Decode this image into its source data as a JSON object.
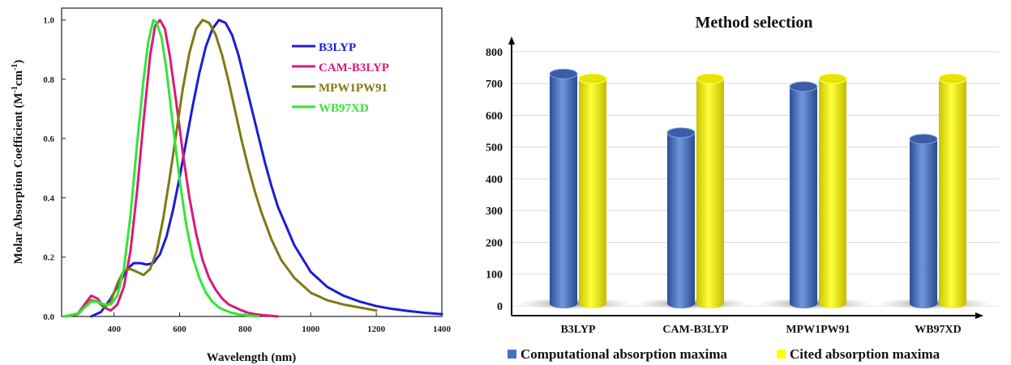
{
  "chart_data": [
    {
      "type": "line",
      "title": "",
      "xlabel": "Wavelength (nm)",
      "ylabel": "Molar Absorption Coefficient (M",
      "ylabel_sup1": "-1",
      "ylabel_mid": "cm",
      "ylabel_sup2": "-1",
      "ylabel_end": ")",
      "xlim": [
        240,
        1400
      ],
      "ylim": [
        0,
        1.04
      ],
      "xticks": [
        400,
        600,
        800,
        1000,
        1200,
        1400
      ],
      "xtick_labels": [
        "400",
        "600",
        "800",
        "1000",
        "1200",
        "1400"
      ],
      "yticks": [
        0.0,
        0.2,
        0.4,
        0.6,
        0.8,
        1.0
      ],
      "ytick_labels": [
        "0.0",
        "0.2",
        "0.4",
        "0.6",
        "0.8",
        "1.0"
      ],
      "legend_position": "top-right",
      "series": [
        {
          "name": "B3LYP",
          "color": "#1c1cd6",
          "x": [
            330,
            360,
            390,
            420,
            440,
            460,
            480,
            500,
            520,
            540,
            560,
            580,
            600,
            620,
            640,
            660,
            680,
            700,
            720,
            740,
            760,
            780,
            800,
            820,
            840,
            860,
            880,
            900,
            950,
            1000,
            1050,
            1100,
            1150,
            1200,
            1250,
            1300,
            1350,
            1400
          ],
          "y": [
            0.0,
            0.015,
            0.06,
            0.12,
            0.16,
            0.18,
            0.18,
            0.175,
            0.18,
            0.21,
            0.27,
            0.36,
            0.47,
            0.59,
            0.71,
            0.82,
            0.91,
            0.97,
            1.0,
            0.99,
            0.95,
            0.88,
            0.79,
            0.7,
            0.61,
            0.52,
            0.44,
            0.37,
            0.24,
            0.15,
            0.1,
            0.07,
            0.05,
            0.035,
            0.025,
            0.018,
            0.012,
            0.008
          ]
        },
        {
          "name": "CAM-B3LYP",
          "color": "#d81b7a",
          "x": [
            250,
            290,
            310,
            330,
            350,
            370,
            390,
            410,
            430,
            450,
            470,
            490,
            510,
            525,
            540,
            555,
            570,
            590,
            610,
            630,
            650,
            670,
            690,
            710,
            730,
            750,
            770,
            790,
            810,
            830,
            850,
            870,
            900
          ],
          "y": [
            0.0,
            0.01,
            0.04,
            0.07,
            0.06,
            0.03,
            0.02,
            0.04,
            0.1,
            0.22,
            0.42,
            0.66,
            0.88,
            0.98,
            1.0,
            0.97,
            0.88,
            0.72,
            0.55,
            0.4,
            0.28,
            0.19,
            0.13,
            0.09,
            0.06,
            0.04,
            0.03,
            0.02,
            0.012,
            0.008,
            0.005,
            0.003,
            0.0
          ]
        },
        {
          "name": "MPW1PW91",
          "color": "#7d7a14",
          "x": [
            250,
            290,
            310,
            330,
            350,
            370,
            390,
            410,
            430,
            450,
            470,
            490,
            510,
            530,
            550,
            570,
            590,
            610,
            630,
            650,
            670,
            690,
            710,
            730,
            750,
            770,
            790,
            810,
            830,
            850,
            880,
            910,
            950,
            1000,
            1050,
            1100,
            1150,
            1200
          ],
          "y": [
            0.0,
            0.008,
            0.03,
            0.055,
            0.05,
            0.03,
            0.05,
            0.11,
            0.155,
            0.16,
            0.15,
            0.14,
            0.16,
            0.22,
            0.33,
            0.47,
            0.62,
            0.77,
            0.89,
            0.97,
            1.0,
            0.99,
            0.95,
            0.88,
            0.79,
            0.69,
            0.59,
            0.5,
            0.42,
            0.35,
            0.26,
            0.19,
            0.13,
            0.08,
            0.055,
            0.04,
            0.03,
            0.02
          ]
        },
        {
          "name": "WB97XD",
          "color": "#33e633",
          "x": [
            250,
            290,
            310,
            330,
            350,
            370,
            390,
            410,
            430,
            450,
            470,
            490,
            505,
            520,
            530,
            545,
            560,
            580,
            600,
            620,
            640,
            660,
            680,
            700,
            720,
            740,
            760,
            780,
            800,
            820,
            840
          ],
          "y": [
            0.0,
            0.01,
            0.03,
            0.05,
            0.05,
            0.04,
            0.04,
            0.07,
            0.16,
            0.34,
            0.58,
            0.8,
            0.93,
            1.0,
            0.99,
            0.94,
            0.83,
            0.64,
            0.46,
            0.31,
            0.2,
            0.13,
            0.08,
            0.05,
            0.03,
            0.02,
            0.012,
            0.007,
            0.004,
            0.002,
            0.0
          ]
        }
      ]
    },
    {
      "type": "bar",
      "title": "Method selection",
      "categories": [
        "B3LYP",
        "CAM-B3LYP",
        "MPW1PW91",
        "WB97XD"
      ],
      "ylim": [
        0,
        800
      ],
      "yticks": [
        0,
        100,
        200,
        300,
        400,
        500,
        600,
        700,
        800
      ],
      "ytick_labels": [
        "0",
        "100",
        "200",
        "300",
        "400",
        "500",
        "600",
        "700",
        "800"
      ],
      "grid": true,
      "legend_position": "bottom",
      "series": [
        {
          "name": "Computational absorption maxima",
          "color": "#4472c4",
          "values": [
            730,
            545,
            690,
            525
          ]
        },
        {
          "name": "Cited absorption maxima",
          "color": "#ffff00",
          "values": [
            715,
            715,
            715,
            715
          ]
        }
      ]
    }
  ]
}
